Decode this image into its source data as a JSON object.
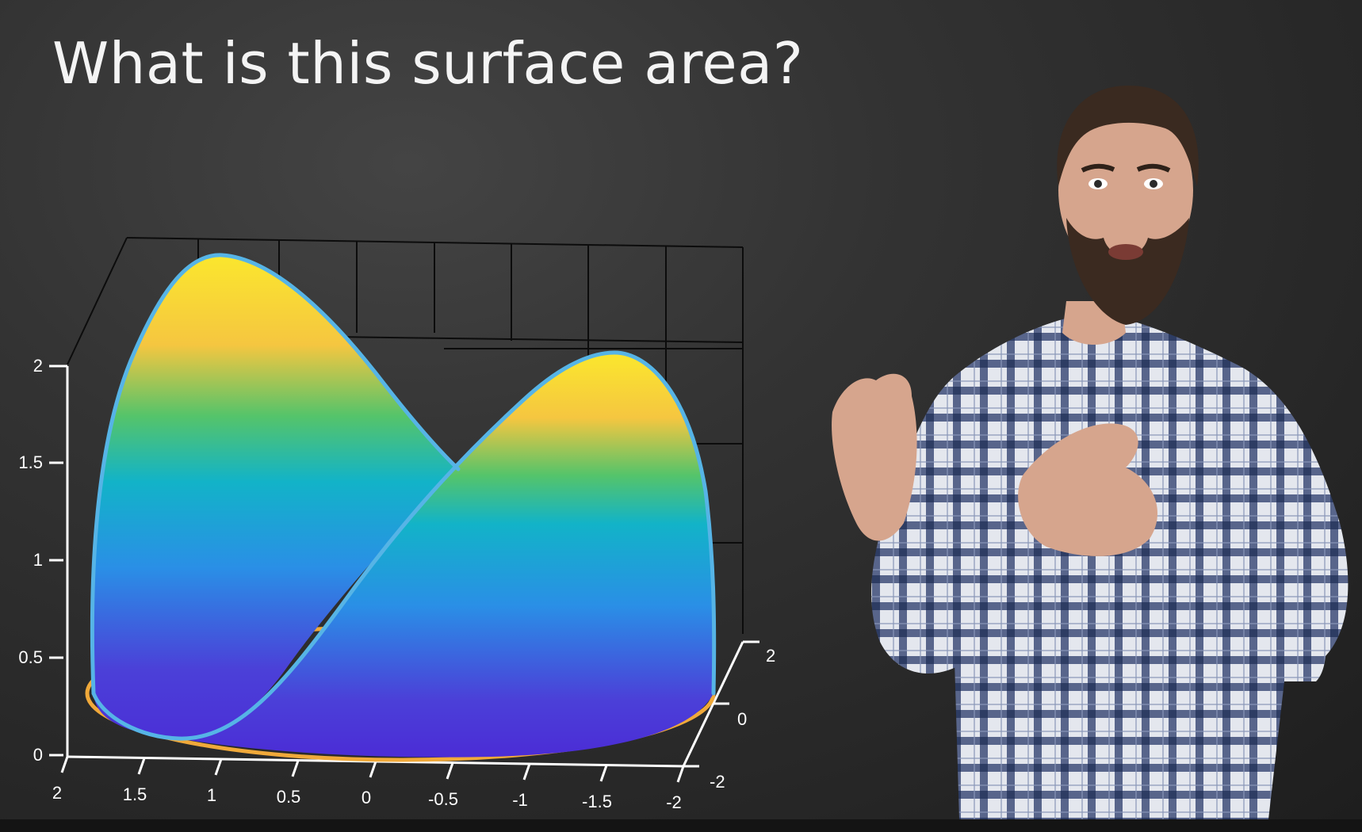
{
  "title": "What is this surface area?",
  "chart_data": {
    "type": "surface3d",
    "title": "",
    "z_axis": {
      "ticks": [
        "0",
        "0.5",
        "1",
        "1.5",
        "2"
      ],
      "range": [
        0,
        2
      ]
    },
    "x_axis": {
      "ticks": [
        "2",
        "1.5",
        "1",
        "0.5",
        "0",
        "-0.5",
        "-1",
        "-1.5",
        "-2"
      ],
      "range": [
        2,
        -2
      ]
    },
    "y_axis": {
      "ticks": [
        "-2",
        "0",
        "2"
      ],
      "range": [
        -2,
        2
      ]
    },
    "grid": true,
    "colormap": [
      "#4b2bd6",
      "#2a7fe6",
      "#12b3c8",
      "#55c46a",
      "#f5c640",
      "#fbe72d"
    ],
    "edge_color": "#56b4e6",
    "base_curve_color": "#f0a93a"
  },
  "presenter": {
    "shirt": "plaid",
    "colors": {
      "shirt_dark": "#2d3c63",
      "shirt_light": "#e4e7ee",
      "skin": "#d6a58d",
      "beard": "#3b2a20"
    }
  }
}
